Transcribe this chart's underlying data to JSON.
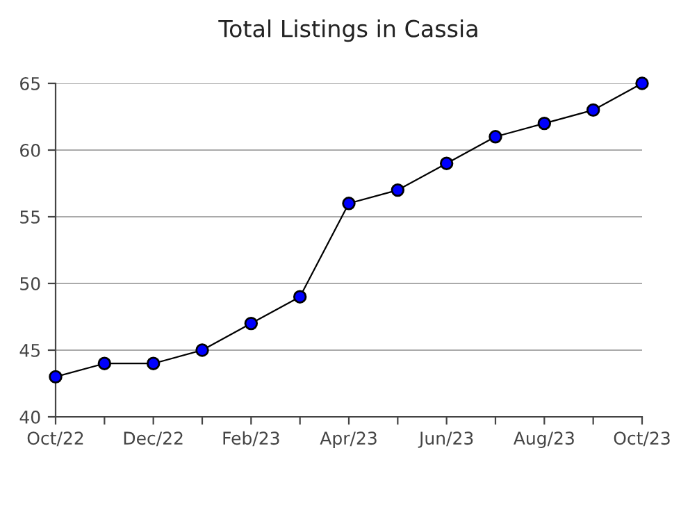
{
  "chart_data": {
    "type": "line",
    "title": "Total Listings in Cassia",
    "categories": [
      "Oct/22",
      null,
      "Dec/22",
      null,
      "Feb/23",
      null,
      "Apr/23",
      null,
      "Jun/23",
      null,
      "Aug/23",
      null,
      "Oct/23"
    ],
    "series": [
      {
        "color": "#0000ff",
        "values": [
          43,
          44,
          44,
          45,
          47,
          49,
          56,
          57,
          59,
          61,
          62,
          63,
          65
        ]
      }
    ],
    "ylim": [
      40,
      65
    ],
    "yticks": [
      40,
      45,
      50,
      55,
      60,
      65
    ],
    "grid": "y",
    "marker": "circle",
    "line_style": "solid",
    "legend": false
  }
}
